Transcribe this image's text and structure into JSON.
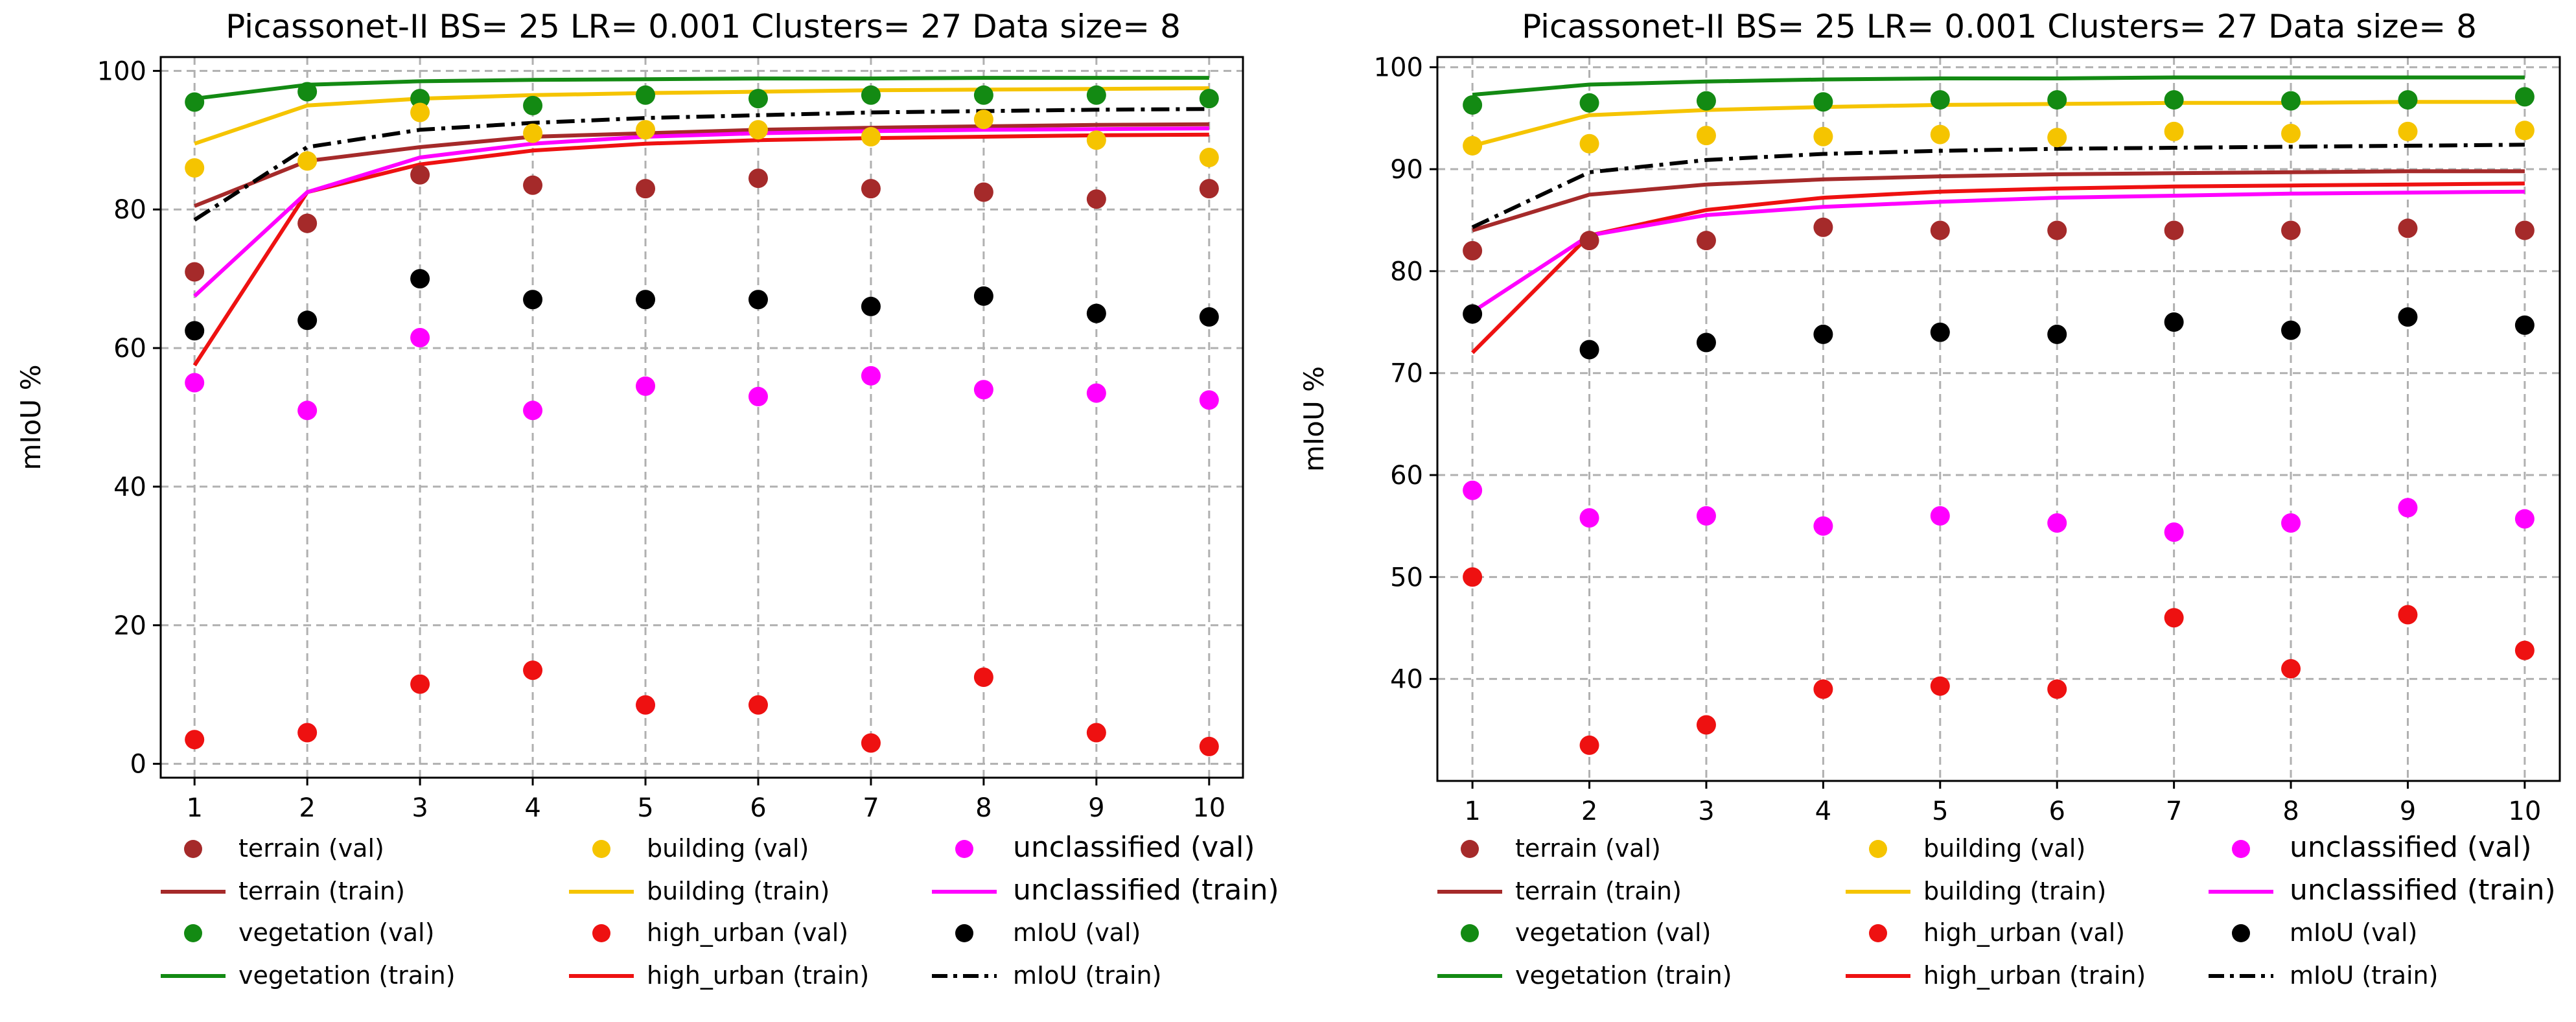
{
  "chart_data": [
    {
      "type": "scatter+line",
      "title": "Picassonet-II BS= 25 LR= 0.001 Clusters= 27 Data size= 8",
      "xlabel": "",
      "ylabel": "mIoU %",
      "x": [
        1,
        2,
        3,
        4,
        5,
        6,
        7,
        8,
        9,
        10
      ],
      "xticks": [
        "1",
        "2",
        "3",
        "4",
        "5",
        "6",
        "7",
        "8",
        "9",
        "10"
      ],
      "xlim": [
        0.7,
        10.3
      ],
      "ylim": [
        -2,
        102
      ],
      "yticks": [
        0,
        20,
        40,
        60,
        80,
        100
      ],
      "ytick_labels": [
        "0",
        "20",
        "40",
        "60",
        "80",
        "100"
      ],
      "grid": true,
      "series": [
        {
          "name": "terrain (val)",
          "kind": "scatter",
          "color": "#a52a2a",
          "values": [
            71,
            78,
            85,
            83.5,
            83,
            84.5,
            83,
            82.5,
            81.5,
            83
          ]
        },
        {
          "name": "terrain (train)",
          "kind": "line",
          "color": "#a52a2a",
          "dash": "solid",
          "values": [
            80.5,
            87,
            89,
            90.5,
            91,
            91.5,
            91.8,
            92,
            92.2,
            92.3
          ]
        },
        {
          "name": "vegetation (val)",
          "kind": "scatter",
          "color": "#138a13",
          "values": [
            95.5,
            97,
            96,
            95,
            96.5,
            96,
            96.5,
            96.5,
            96.5,
            96
          ]
        },
        {
          "name": "vegetation (train)",
          "kind": "line",
          "color": "#138a13",
          "dash": "solid",
          "values": [
            96,
            98,
            98.5,
            98.7,
            98.8,
            98.9,
            98.9,
            99,
            99,
            99
          ]
        },
        {
          "name": "building (val)",
          "kind": "scatter",
          "color": "#f5c400",
          "values": [
            86,
            87,
            94,
            91,
            91.5,
            91.5,
            90.5,
            93,
            90,
            87.5
          ]
        },
        {
          "name": "building (train)",
          "kind": "line",
          "color": "#f5c400",
          "dash": "solid",
          "values": [
            89.5,
            95,
            96,
            96.5,
            96.8,
            97,
            97.2,
            97.3,
            97.4,
            97.5
          ]
        },
        {
          "name": "high_urban (val)",
          "kind": "scatter",
          "color": "#ee1111",
          "values": [
            3.5,
            4.5,
            11.5,
            13.5,
            8.5,
            8.5,
            3,
            12.5,
            4.5,
            2.5
          ]
        },
        {
          "name": "high_urban (train)",
          "kind": "line",
          "color": "#ee1111",
          "dash": "solid",
          "values": [
            57.5,
            82.5,
            86.5,
            88.5,
            89.5,
            90,
            90.3,
            90.5,
            90.7,
            90.8
          ]
        },
        {
          "name": "unclassified (val)",
          "kind": "scatter",
          "color": "#ff00ff",
          "values": [
            55,
            51,
            61.5,
            51,
            54.5,
            53,
            56,
            54,
            53.5,
            52.5
          ]
        },
        {
          "name": "unclassified (train)",
          "kind": "line",
          "color": "#ff00ff",
          "dash": "solid",
          "values": [
            67.5,
            82.5,
            87.5,
            89.5,
            90.5,
            91,
            91.3,
            91.5,
            91.6,
            91.7
          ]
        },
        {
          "name": "mIoU (val)",
          "kind": "scatter",
          "color": "#000000",
          "values": [
            62.5,
            64,
            70,
            67,
            67,
            67,
            66,
            67.5,
            65,
            64.5
          ]
        },
        {
          "name": "mIoU (train)",
          "kind": "line",
          "color": "#000000",
          "dash": "dashdot",
          "values": [
            78.5,
            89,
            91.5,
            92.5,
            93.2,
            93.6,
            94,
            94.2,
            94.4,
            94.5
          ]
        }
      ]
    },
    {
      "type": "scatter+line",
      "title": "Picassonet-II BS= 25 LR= 0.001 Clusters= 27 Data size= 8",
      "xlabel": "",
      "ylabel": "mIoU %",
      "x": [
        1,
        2,
        3,
        4,
        5,
        6,
        7,
        8,
        9,
        10
      ],
      "xticks": [
        "1",
        "2",
        "3",
        "4",
        "5",
        "6",
        "7",
        "8",
        "9",
        "10"
      ],
      "xlim": [
        0.7,
        10.3
      ],
      "ylim": [
        30,
        101
      ],
      "yticks": [
        40,
        50,
        60,
        70,
        80,
        90,
        100
      ],
      "ytick_labels": [
        "40",
        "50",
        "60",
        "70",
        "80",
        "90",
        "100"
      ],
      "grid": true,
      "series": [
        {
          "name": "terrain (val)",
          "kind": "scatter",
          "color": "#a52a2a",
          "values": [
            82,
            83,
            83,
            84.3,
            84,
            84,
            84,
            84,
            84.2,
            84
          ]
        },
        {
          "name": "terrain (train)",
          "kind": "line",
          "color": "#a52a2a",
          "dash": "solid",
          "values": [
            84,
            87.5,
            88.5,
            89,
            89.3,
            89.5,
            89.6,
            89.7,
            89.8,
            89.8
          ]
        },
        {
          "name": "vegetation (val)",
          "kind": "scatter",
          "color": "#138a13",
          "values": [
            96.3,
            96.5,
            96.7,
            96.6,
            96.8,
            96.8,
            96.8,
            96.7,
            96.8,
            97.1
          ]
        },
        {
          "name": "vegetation (train)",
          "kind": "line",
          "color": "#138a13",
          "dash": "solid",
          "values": [
            97.3,
            98.3,
            98.6,
            98.8,
            98.9,
            98.9,
            99,
            99,
            99,
            99
          ]
        },
        {
          "name": "building (val)",
          "kind": "scatter",
          "color": "#f5c400",
          "values": [
            92.3,
            92.5,
            93.3,
            93.2,
            93.4,
            93.1,
            93.7,
            93.5,
            93.7,
            93.8
          ]
        },
        {
          "name": "building (train)",
          "kind": "line",
          "color": "#f5c400",
          "dash": "solid",
          "values": [
            92.3,
            95.3,
            95.8,
            96.1,
            96.3,
            96.4,
            96.5,
            96.5,
            96.6,
            96.6
          ]
        },
        {
          "name": "high_urban (val)",
          "kind": "scatter",
          "color": "#ee1111",
          "values": [
            50,
            33.5,
            35.5,
            39,
            39.3,
            39,
            46,
            41,
            46.3,
            42.8
          ]
        },
        {
          "name": "high_urban (train)",
          "kind": "line",
          "color": "#ee1111",
          "dash": "solid",
          "values": [
            72,
            83.5,
            86,
            87.2,
            87.8,
            88.1,
            88.3,
            88.4,
            88.5,
            88.6
          ]
        },
        {
          "name": "unclassified (val)",
          "kind": "scatter",
          "color": "#ff00ff",
          "values": [
            58.5,
            55.8,
            56,
            55,
            56,
            55.3,
            54.4,
            55.3,
            56.8,
            55.7
          ]
        },
        {
          "name": "unclassified (train)",
          "kind": "line",
          "color": "#ff00ff",
          "dash": "solid",
          "values": [
            76,
            83.5,
            85.5,
            86.3,
            86.8,
            87.2,
            87.4,
            87.6,
            87.7,
            87.8
          ]
        },
        {
          "name": "mIoU (val)",
          "kind": "scatter",
          "color": "#000000",
          "values": [
            75.8,
            72.3,
            73,
            73.8,
            74,
            73.8,
            75,
            74.2,
            75.5,
            74.7
          ]
        },
        {
          "name": "mIoU (train)",
          "kind": "line",
          "color": "#000000",
          "dash": "dashdot",
          "values": [
            84.3,
            89.7,
            90.9,
            91.5,
            91.8,
            92,
            92.1,
            92.2,
            92.3,
            92.4
          ]
        }
      ]
    }
  ]
}
